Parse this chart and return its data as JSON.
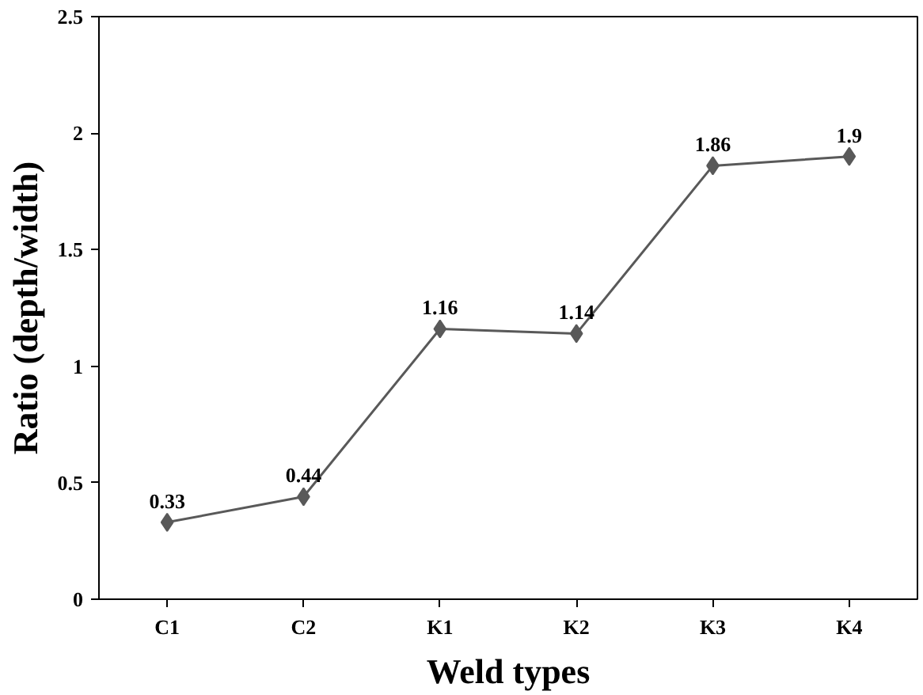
{
  "chart_data": {
    "type": "line",
    "xlabel": "Weld types",
    "ylabel": "Ratio (depth/width)",
    "categories": [
      "C1",
      "C2",
      "K1",
      "K2",
      "K3",
      "K4"
    ],
    "series": [
      {
        "color": "#595959",
        "values": [
          0.33,
          0.44,
          1.16,
          1.14,
          1.86,
          1.9
        ]
      }
    ],
    "ylim": [
      0,
      2.5
    ],
    "yticks": [
      0,
      0.5,
      1,
      1.5,
      2,
      2.5
    ],
    "marker": "diamond",
    "line_style": "solid",
    "data_labels": true,
    "grid": false
  }
}
